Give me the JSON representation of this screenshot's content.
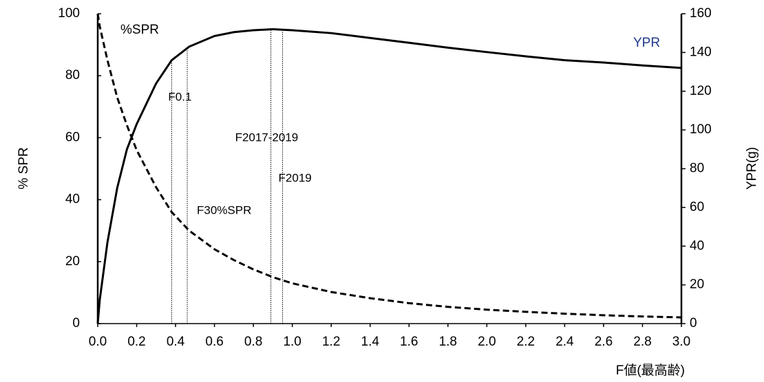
{
  "chart_data": {
    "type": "line",
    "x_label": "F値(最高齢)",
    "y_label": "% SPR",
    "y2_label": "YPR(g)",
    "x": [
      0,
      0.01,
      0.05,
      0.1,
      0.15,
      0.2,
      0.3,
      0.38,
      0.47,
      0.6,
      0.7,
      0.8,
      0.9,
      1.0,
      1.2,
      1.4,
      1.6,
      1.8,
      2.0,
      2.2,
      2.4,
      2.6,
      2.8,
      3.0
    ],
    "series": [
      {
        "name": "%SPR",
        "color": "#000000",
        "label_color": "#000000",
        "dash": true,
        "values": [
          100,
          96,
          85,
          73,
          64,
          56,
          44,
          36,
          30,
          24,
          20.5,
          17.5,
          15,
          13,
          10.2,
          8.2,
          6.6,
          5.4,
          4.5,
          3.8,
          3.2,
          2.7,
          2.3,
          2
        ]
      },
      {
        "name": "YPR",
        "color": "#000000",
        "label_color": "#1f3a8a",
        "dash": false,
        "axis": "y2",
        "values": [
          0,
          12,
          42,
          70,
          90,
          103,
          124,
          136,
          143,
          148.5,
          150.5,
          151.5,
          152,
          151.5,
          150,
          147.5,
          145,
          142.5,
          140.2,
          138,
          136,
          134.8,
          133.3,
          132
        ]
      }
    ],
    "reference_lines": [
      {
        "name": "F0.1",
        "x": 0.38
      },
      {
        "name": "F30%SPR",
        "x": 0.46
      },
      {
        "name": "F2017-2019",
        "x": 0.89
      },
      {
        "name": "F2019",
        "x": 0.95
      }
    ],
    "xlim": [
      0,
      3
    ],
    "xticks": [
      {
        "value": 0,
        "label": "0.0"
      },
      0.2,
      0.4,
      0.6,
      0.8,
      {
        "value": 1,
        "label": "1.0"
      },
      1.2,
      1.4,
      1.6,
      1.8,
      {
        "value": 2,
        "label": "2.0"
      },
      2.2,
      2.4,
      2.6,
      2.8,
      {
        "value": 3,
        "label": "3.0"
      }
    ],
    "ylim": [
      0,
      100
    ],
    "yticks": [
      0,
      20,
      40,
      60,
      80,
      100
    ],
    "y2lim": [
      0,
      160
    ],
    "y2ticks": [
      0,
      20,
      40,
      60,
      80,
      100,
      120,
      140,
      160
    ],
    "grid": false
  }
}
